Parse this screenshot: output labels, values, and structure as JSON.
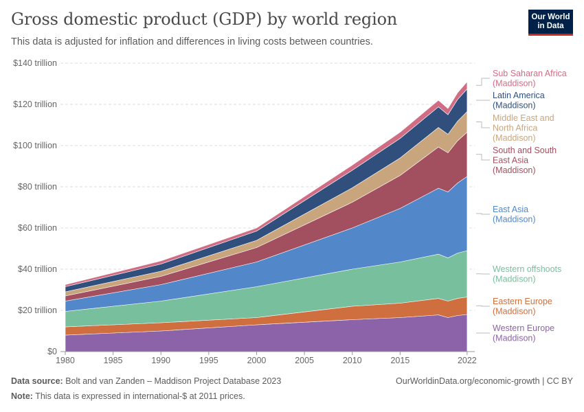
{
  "header": {
    "title": "Gross domestic product (GDP) by world region",
    "subtitle": "This data is adjusted for inflation and differences in living costs between countries.",
    "logo_line1": "Our World",
    "logo_line2": "in Data"
  },
  "footer": {
    "source_label": "Data source:",
    "source_text": "Bolt and van Zanden – Maddison Project Database 2023",
    "note_label": "Note:",
    "note_text": "This data is expressed in international-$ at 2011 prices.",
    "link_text": "OurWorldinData.org/economic-growth | CC BY"
  },
  "chart_data": {
    "type": "area",
    "stacked": true,
    "title": "Gross domestic product (GDP) by world region",
    "ylim": [
      0,
      140
    ],
    "y_unit": "trillion international-$",
    "y_ticks": [
      0,
      20,
      40,
      60,
      80,
      100,
      120,
      140
    ],
    "y_tick_labels": [
      "$0",
      "$20 trillion",
      "$40 trillion",
      "$60 trillion",
      "$80 trillion",
      "$100 trillion",
      "$120 trillion",
      "$140 trillion"
    ],
    "x_ticks": [
      1980,
      1985,
      1990,
      1995,
      2000,
      2005,
      2010,
      2015,
      2022
    ],
    "x_tick_labels": [
      "1980",
      "1985",
      "1990",
      "1995",
      "2000",
      "2005",
      "2010",
      "2015",
      "2022"
    ],
    "x": [
      1980,
      1990,
      2000,
      2010,
      2015,
      2019,
      2020,
      2021,
      2022
    ],
    "series": [
      {
        "name": "Western Europe",
        "label_lines": [
          "Western Europe",
          "(Maddison)"
        ],
        "color": "#8c63a8",
        "values": [
          8.0,
          10.0,
          13.0,
          15.5,
          16.5,
          17.8,
          16.5,
          17.5,
          18.0
        ]
      },
      {
        "name": "Eastern Europe",
        "label_lines": [
          "Eastern Europe",
          "(Maddison)"
        ],
        "color": "#cf6f3f",
        "values": [
          4.0,
          4.0,
          3.5,
          6.5,
          7.0,
          8.0,
          8.0,
          8.3,
          8.5
        ]
      },
      {
        "name": "Western offshoots",
        "label_lines": [
          "Western offshoots",
          "(Maddison)"
        ],
        "color": "#78bf9d",
        "values": [
          7.5,
          10.5,
          15.0,
          18.0,
          20.0,
          21.5,
          21.0,
          22.0,
          22.5
        ]
      },
      {
        "name": "East Asia",
        "label_lines": [
          "East Asia",
          "(Maddison)"
        ],
        "color": "#5287c9",
        "values": [
          5.0,
          8.0,
          12.0,
          20.0,
          26.0,
          32.0,
          32.0,
          34.0,
          36.0
        ]
      },
      {
        "name": "South and South East Asia",
        "label_lines": [
          "South and South",
          "East Asia",
          "(Maddison)"
        ],
        "color": "#a24f5f",
        "values": [
          2.5,
          4.0,
          7.0,
          12.5,
          16.0,
          20.0,
          19.0,
          20.5,
          21.5
        ]
      },
      {
        "name": "Middle East and North Africa",
        "label_lines": [
          "Middle East and",
          "North Africa",
          "(Maddison)"
        ],
        "color": "#c9a57d",
        "values": [
          2.0,
          2.5,
          3.5,
          7.0,
          8.5,
          9.5,
          9.0,
          9.5,
          10.0
        ]
      },
      {
        "name": "Latin America",
        "label_lines": [
          "Latin America",
          "(Maddison)"
        ],
        "color": "#304f7c",
        "values": [
          2.5,
          3.5,
          4.5,
          8.5,
          9.5,
          10.0,
          9.5,
          10.5,
          11.0
        ]
      },
      {
        "name": "Sub Saharan Africa",
        "label_lines": [
          "Sub Saharan Africa",
          "(Maddison)"
        ],
        "color": "#d06d85",
        "values": [
          1.0,
          1.5,
          1.5,
          2.5,
          3.0,
          3.2,
          3.0,
          3.3,
          3.5
        ]
      }
    ]
  }
}
